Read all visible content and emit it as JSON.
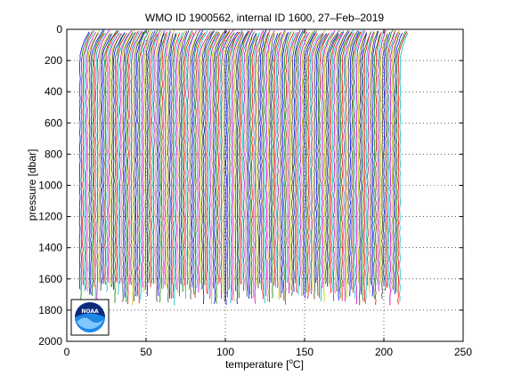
{
  "chart_data": {
    "type": "line",
    "title": "WMO ID 1900562, internal ID 1600, 27–Feb–2019",
    "xlabel": "temperature [°C]",
    "xlabel_parts": {
      "before": "temperature [",
      "sup": "o",
      "after": "C]"
    },
    "ylabel": "pressure [dbar]",
    "xlim": [
      0,
      250
    ],
    "ylim": [
      2000,
      0
    ],
    "y_reversed": true,
    "grid": true,
    "xticks": [
      0,
      50,
      100,
      150,
      200,
      250
    ],
    "yticks": [
      0,
      200,
      400,
      600,
      800,
      1000,
      1200,
      1400,
      1600,
      1800,
      2000
    ],
    "profiles": {
      "count": 200,
      "first_offset": 8,
      "last_offset": 210,
      "colors": [
        "#0000ff",
        "#008000",
        "#ff0000",
        "#00bfbf",
        "#bf00bf",
        "#bfbf00",
        "#404040"
      ]
    },
    "logo": {
      "label": "NOAA"
    }
  }
}
